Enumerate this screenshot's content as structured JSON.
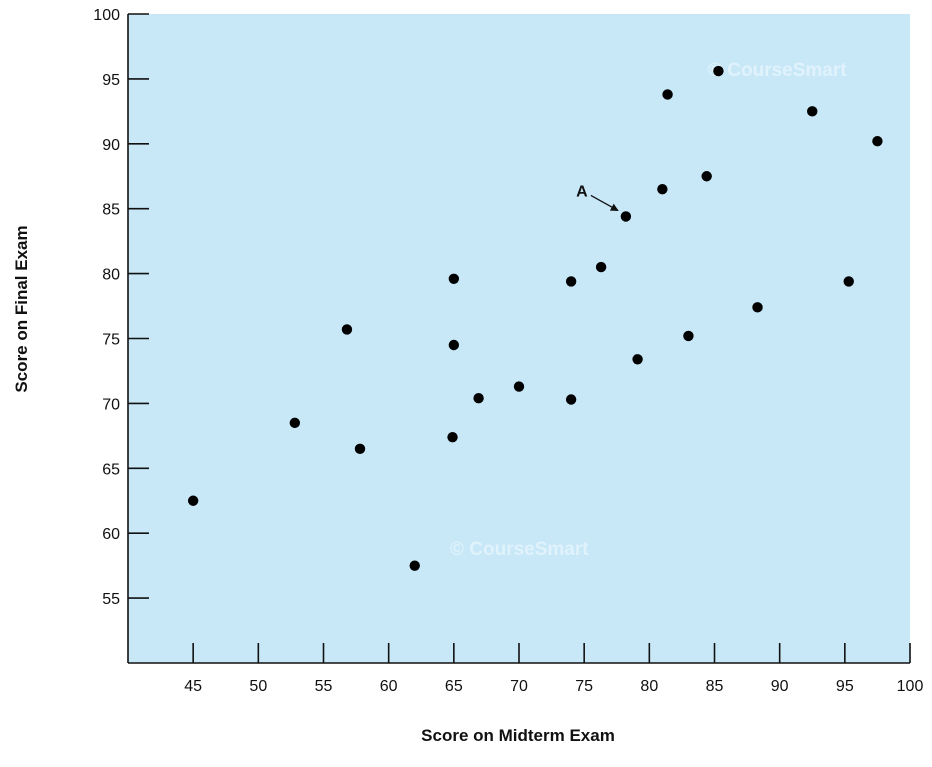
{
  "chart_data": {
    "type": "scatter",
    "xlabel": "Score on Midterm Exam",
    "ylabel": "Score on Final Exam",
    "xlim": [
      40,
      100
    ],
    "ylim": [
      50,
      100
    ],
    "x_ticks": [
      45,
      50,
      55,
      60,
      65,
      70,
      75,
      80,
      85,
      90,
      95,
      100
    ],
    "y_ticks": [
      55,
      60,
      65,
      70,
      75,
      80,
      85,
      90,
      95,
      100
    ],
    "grid": false,
    "background_color": "#c8e8f8",
    "point_color": "#000000",
    "points": [
      {
        "x": 45,
        "y": 62.5
      },
      {
        "x": 52.8,
        "y": 68.5
      },
      {
        "x": 56.8,
        "y": 75.7
      },
      {
        "x": 57.8,
        "y": 66.5
      },
      {
        "x": 62,
        "y": 57.5
      },
      {
        "x": 64.9,
        "y": 67.4
      },
      {
        "x": 65,
        "y": 74.5
      },
      {
        "x": 65,
        "y": 79.6
      },
      {
        "x": 66.9,
        "y": 70.4
      },
      {
        "x": 70,
        "y": 71.3
      },
      {
        "x": 74,
        "y": 70.3
      },
      {
        "x": 74,
        "y": 79.4
      },
      {
        "x": 76.3,
        "y": 80.5
      },
      {
        "x": 78.2,
        "y": 84.4
      },
      {
        "x": 79.1,
        "y": 73.4
      },
      {
        "x": 81,
        "y": 86.5
      },
      {
        "x": 81.4,
        "y": 93.8
      },
      {
        "x": 83,
        "y": 75.2
      },
      {
        "x": 84.4,
        "y": 87.5
      },
      {
        "x": 85.3,
        "y": 95.6
      },
      {
        "x": 88.3,
        "y": 77.4
      },
      {
        "x": 92.5,
        "y": 92.5
      },
      {
        "x": 95.3,
        "y": 79.4
      },
      {
        "x": 97.5,
        "y": 90.2
      }
    ],
    "annotations": [
      {
        "text": "A",
        "x": 78.2,
        "y": 84.4
      }
    ]
  },
  "watermarks": [
    "© CourseSmart",
    "© CourseSmart"
  ]
}
